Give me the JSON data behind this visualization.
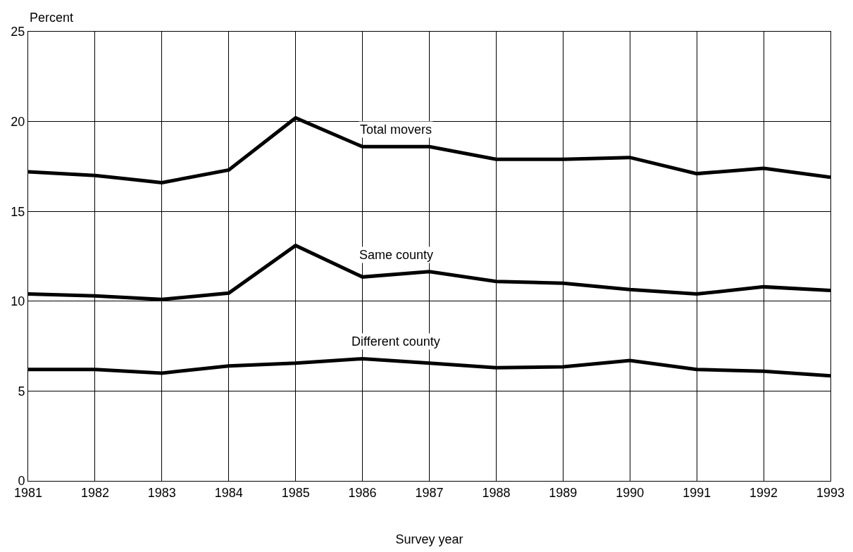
{
  "chart_data": {
    "type": "line",
    "xlabel": "Survey year",
    "ylabel": "Percent",
    "x": [
      1981,
      1982,
      1983,
      1984,
      1985,
      1986,
      1987,
      1988,
      1989,
      1990,
      1991,
      1992,
      1993
    ],
    "xlim": [
      1981,
      1993
    ],
    "xticks": [
      1981,
      1982,
      1983,
      1984,
      1985,
      1986,
      1987,
      1988,
      1989,
      1990,
      1991,
      1992,
      1993
    ],
    "ylim": [
      0,
      25
    ],
    "yticks": [
      0,
      5,
      10,
      15,
      20,
      25
    ],
    "grid": true,
    "legend": false,
    "line_style": "solid",
    "series": [
      {
        "name": "Total movers",
        "color": "#000000",
        "values": [
          17.2,
          17.0,
          16.6,
          17.3,
          20.2,
          18.6,
          18.6,
          17.9,
          17.9,
          18.0,
          17.1,
          17.4,
          16.9
        ]
      },
      {
        "name": "Same county",
        "color": "#000000",
        "values": [
          10.4,
          10.3,
          10.1,
          10.45,
          13.1,
          11.35,
          11.65,
          11.1,
          11.0,
          10.65,
          10.4,
          10.8,
          10.6
        ]
      },
      {
        "name": "Different county",
        "color": "#000000",
        "values": [
          6.2,
          6.2,
          6.0,
          6.4,
          6.55,
          6.8,
          6.55,
          6.3,
          6.35,
          6.7,
          6.2,
          6.1,
          5.85
        ]
      }
    ]
  }
}
